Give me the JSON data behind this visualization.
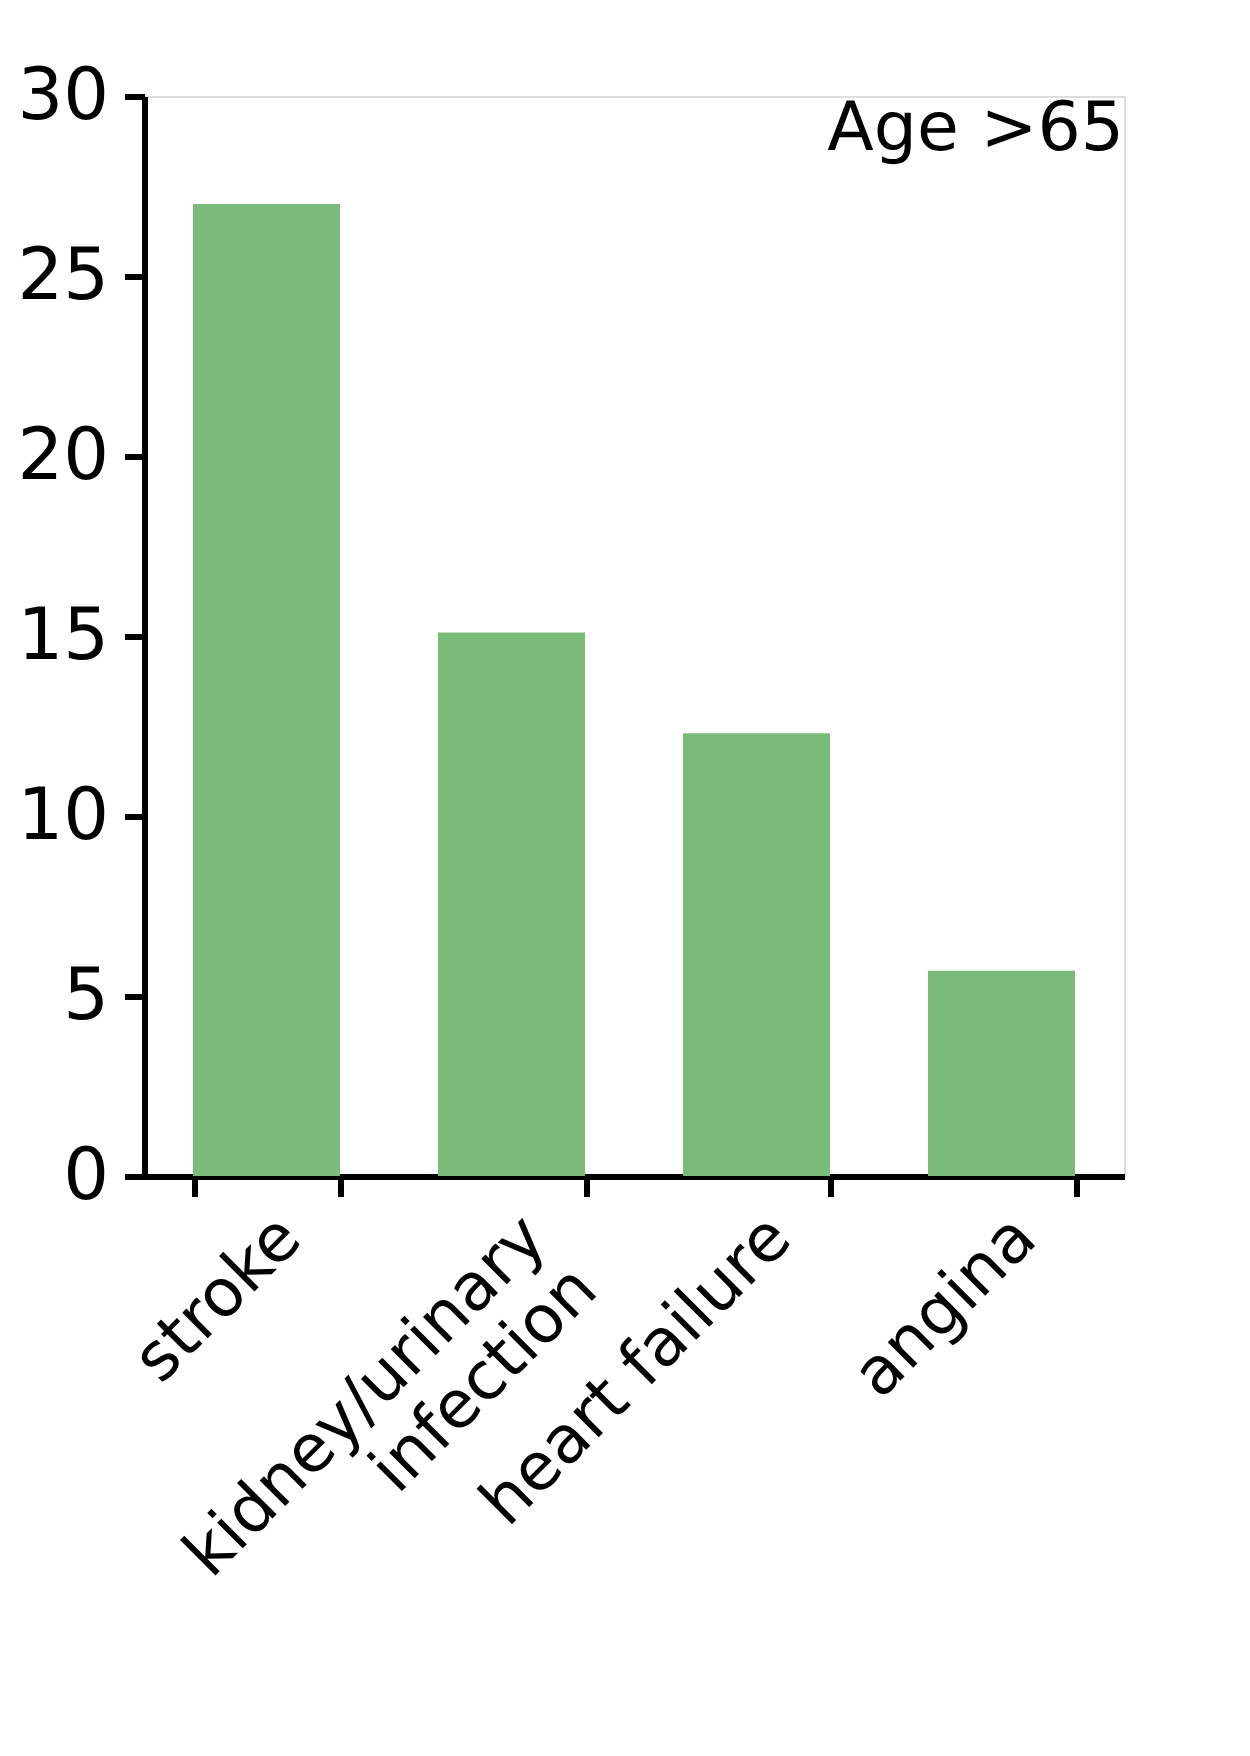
{
  "chart_data": {
    "type": "bar",
    "categories": [
      "stroke",
      "kidney/urinary\ninfection",
      "heart failure",
      "angina"
    ],
    "values": [
      27,
      15.1,
      12.3,
      5.7
    ],
    "color": "#7bbb7a",
    "ylim": [
      0,
      30
    ],
    "yticks": [
      0,
      5,
      10,
      15,
      20,
      25,
      30
    ],
    "annotations": [
      "Age >65"
    ]
  }
}
